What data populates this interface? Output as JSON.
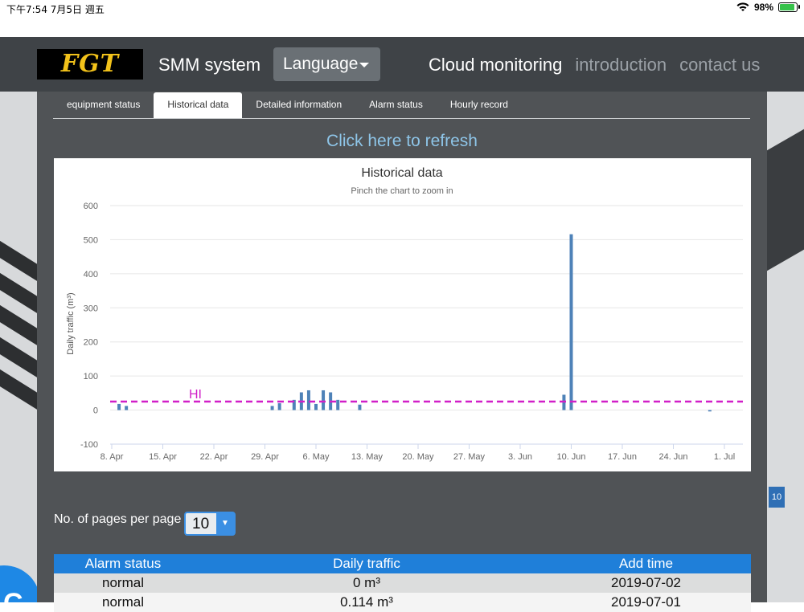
{
  "status_bar": {
    "time": "下午7:54  7月5日 週五",
    "battery": "98%",
    "battery_level": 0.98
  },
  "navbar": {
    "logo": "FGT",
    "brand": "SMM system",
    "language_button": "Language",
    "links": [
      "Cloud monitoring",
      "introduction",
      "contact us"
    ]
  },
  "tabs": [
    "equipment status",
    "Historical data",
    "Detailed information",
    "Alarm status",
    "Hourly record"
  ],
  "refresh_label": "Click here to refresh",
  "chart_data": {
    "type": "bar",
    "title": "Historical data",
    "subtitle": "Pinch the chart to zoom in",
    "ylabel": "Daily traffic (m³)",
    "xlabel": "",
    "ylim": [
      -100,
      600
    ],
    "yticks": [
      600,
      500,
      400,
      300,
      200,
      100,
      0,
      -100
    ],
    "xticks": [
      "8. Apr",
      "15. Apr",
      "22. Apr",
      "29. Apr",
      "6. May",
      "13. May",
      "20. May",
      "27. May",
      "3. Jun",
      "10. Jun",
      "17. Jun",
      "24. Jun",
      "1. Jul"
    ],
    "x_start": "2019-04-08",
    "points": [
      {
        "x": "2019-04-09",
        "y": 18
      },
      {
        "x": "2019-04-10",
        "y": 12
      },
      {
        "x": "2019-04-30",
        "y": 12
      },
      {
        "x": "2019-05-01",
        "y": 20
      },
      {
        "x": "2019-05-03",
        "y": 30
      },
      {
        "x": "2019-05-04",
        "y": 52
      },
      {
        "x": "2019-05-05",
        "y": 58
      },
      {
        "x": "2019-05-06",
        "y": 18
      },
      {
        "x": "2019-05-07",
        "y": 58
      },
      {
        "x": "2019-05-08",
        "y": 52
      },
      {
        "x": "2019-05-09",
        "y": 30
      },
      {
        "x": "2019-05-12",
        "y": 16
      },
      {
        "x": "2019-06-09",
        "y": 45
      },
      {
        "x": "2019-06-10",
        "y": 516
      },
      {
        "x": "2019-06-29",
        "y": -4
      }
    ],
    "threshold": {
      "label": "HI",
      "value": 25,
      "color": "#d11fc8"
    },
    "bar_color": "#4e82b8",
    "grid": true
  },
  "pager": {
    "label": "No. of pages per page",
    "value": "10"
  },
  "table": {
    "headers": [
      "Alarm status",
      "Daily traffic",
      "Add time"
    ],
    "rows": [
      [
        "normal",
        "0 m³",
        "2019-07-02"
      ],
      [
        "normal",
        "0.114 m³",
        "2019-07-01"
      ]
    ]
  },
  "colors": {
    "accent": "#1f7fd9",
    "navbar": "#3f4347",
    "panel": "#505356"
  }
}
